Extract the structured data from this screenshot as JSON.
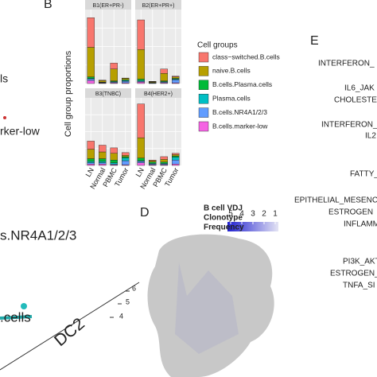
{
  "chart_data": [
    {
      "type": "bar",
      "stacked": true,
      "panel_label": "B",
      "ylabel": "Cell group proportions",
      "legend_title": "Cell groups",
      "legend": "right",
      "grid": true,
      "ylim": [
        0,
        0.5
      ],
      "categories": [
        "LN",
        "Normal",
        "PBMC",
        "Tumor"
      ],
      "series": [
        {
          "name": "B.cells.marker-low",
          "color": "#f564e3"
        },
        {
          "name": "B.cells.NR4A1/2/3",
          "color": "#619cff"
        },
        {
          "name": "Plasma.cells",
          "color": "#00bfc4"
        },
        {
          "name": "B.cells.Plasma.cells",
          "color": "#00ba38"
        },
        {
          "name": "naive.B.cells",
          "color": "#b79f00"
        },
        {
          "name": "class−switched.B.cells",
          "color": "#f8766d"
        }
      ],
      "facets": [
        {
          "title": "B1(ER+PR-)",
          "values": [
            [
              0.02,
              0.003,
              0.005,
              0.005
            ],
            [
              0.01,
              0.002,
              0.005,
              0.01
            ],
            [
              0.005,
              0.002,
              0.003,
              0.005
            ],
            [
              0.01,
              0.003,
              0.005,
              0.005
            ],
            [
              0.2,
              0.01,
              0.08,
              0.01
            ],
            [
              0.2,
              0.003,
              0.04,
              0.002
            ]
          ]
        },
        {
          "title": "B2(ER+PR+)",
          "values": [
            [
              0.01,
              0.002,
              0.005,
              0.005
            ],
            [
              0.005,
              0.002,
              0.005,
              0.02
            ],
            [
              0.005,
              0.002,
              0.003,
              0.005
            ],
            [
              0.01,
              0.002,
              0.005,
              0.005
            ],
            [
              0.2,
              0.005,
              0.05,
              0.01
            ],
            [
              0.2,
              0.002,
              0.03,
              0.005
            ]
          ]
        },
        {
          "title": "B3(TNBC)",
          "values": [
            [
              0.01,
              0.01,
              0.005,
              0.005
            ],
            [
              0.01,
              0.01,
              0.005,
              0.03
            ],
            [
              0.01,
              0.01,
              0.01,
              0.02
            ],
            [
              0.02,
              0.02,
              0.02,
              0.01
            ],
            [
              0.07,
              0.05,
              0.05,
              0.01
            ],
            [
              0.06,
              0.05,
              0.04,
              0.02
            ]
          ]
        },
        {
          "title": "B4(HER2+)",
          "values": [
            [
              0.02,
              0.005,
              0.005,
              0.01
            ],
            [
              0.01,
              0.005,
              0.005,
              0.03
            ],
            [
              0.005,
              0.005,
              0.005,
              0.02
            ],
            [
              0.02,
              0.01,
              0.01,
              0.01
            ],
            [
              0.15,
              0.01,
              0.02,
              0.01
            ],
            [
              0.25,
              0.005,
              0.02,
              0.01
            ]
          ]
        }
      ]
    },
    {
      "type": "scatter",
      "panel_label": "D",
      "colorbar_title": [
        "B cell VDJ",
        "Clonotype",
        "Frequency"
      ],
      "clim": [
        1,
        5
      ],
      "cticks": [
        5,
        4,
        3,
        2,
        1
      ]
    }
  ],
  "left_fragments": [
    "ls",
    "rker-low",
    "s.NR4A1/2/3",
    ".cells",
    "DC2",
    "6",
    "5",
    "4"
  ],
  "right_panel": {
    "label": "E",
    "terms": [
      "INTERFERON_",
      "IL6_JAK",
      "CHOLESTER",
      "INTERFERON_G",
      "IL2",
      "FATTY_",
      "EPITHELIAL_MESENCH",
      "ESTROGEN",
      "INFLAMM",
      "PI3K_AKT",
      "ESTROGEN_",
      "TNFA_SI"
    ]
  }
}
